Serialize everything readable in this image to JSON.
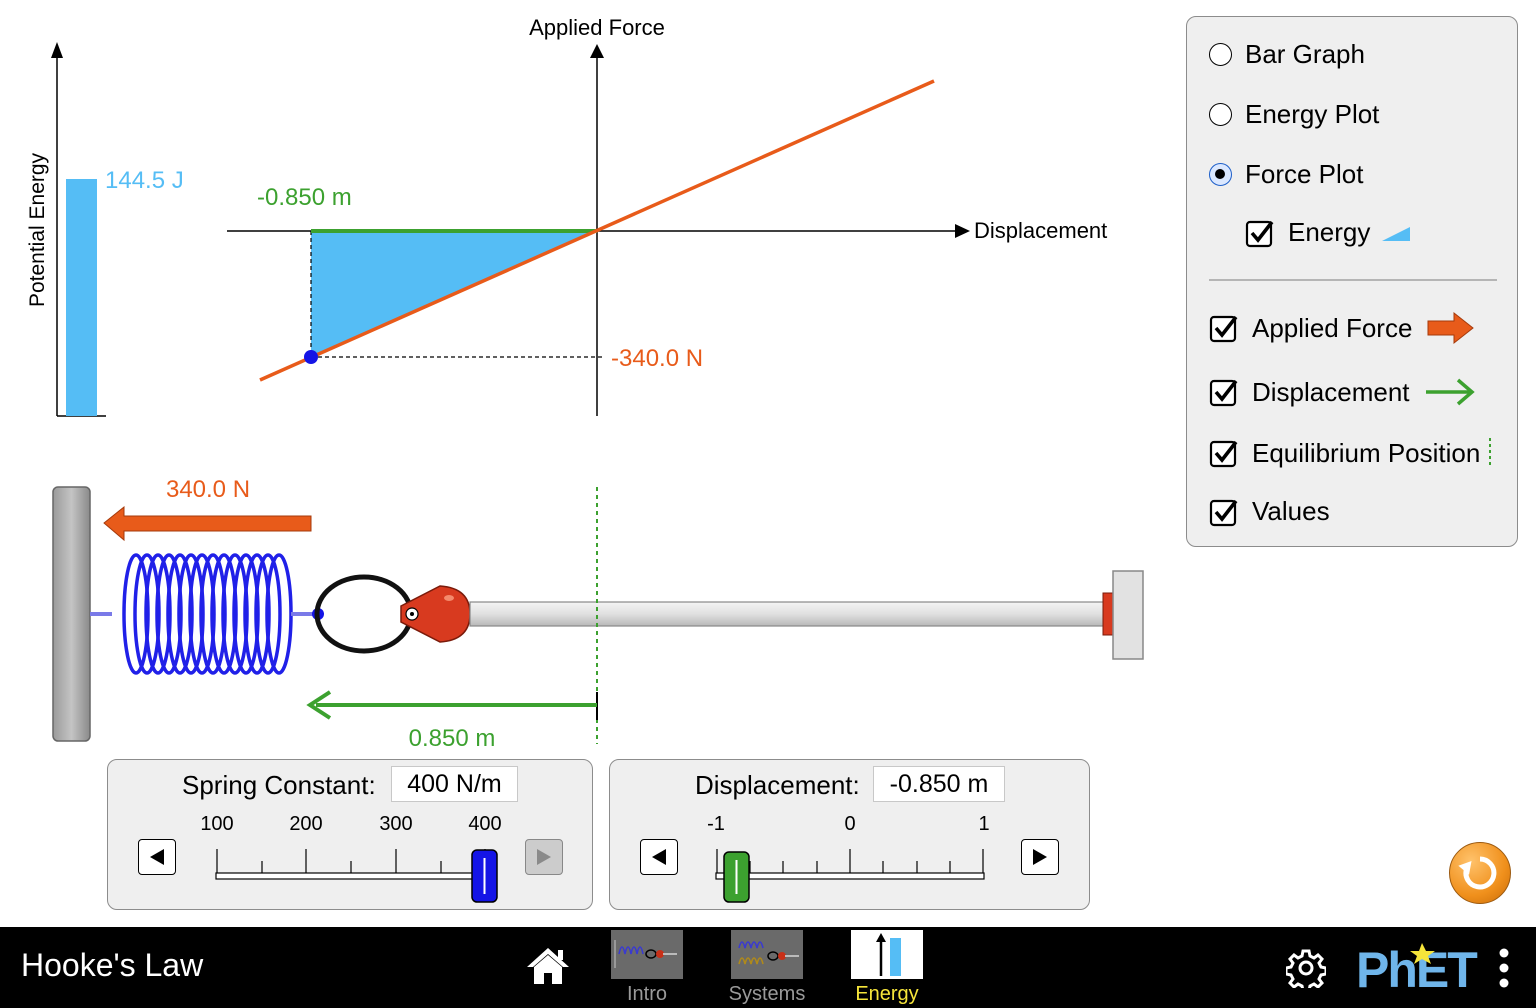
{
  "sim": {
    "title": "Hooke's Law"
  },
  "energy_bar": {
    "axis_label": "Potential Energy",
    "value_label": "144.5 J"
  },
  "force_plot": {
    "y_axis_label": "Applied Force",
    "x_axis_label": "Displacement",
    "displacement_label": "-0.850 m",
    "force_label": "-340.0 N"
  },
  "scene": {
    "applied_force_label": "340.0 N",
    "displacement_label": "0.850 m"
  },
  "controls": {
    "view_options": [
      {
        "label": "Bar Graph",
        "selected": false
      },
      {
        "label": "Energy Plot",
        "selected": false
      },
      {
        "label": "Force Plot",
        "selected": true
      }
    ],
    "energy_checkbox": {
      "label": "Energy",
      "checked": true
    },
    "checkboxes": [
      {
        "label": "Applied Force",
        "checked": true
      },
      {
        "label": "Displacement",
        "checked": true
      },
      {
        "label": "Equilibrium Position",
        "checked": true
      },
      {
        "label": "Values",
        "checked": true
      }
    ]
  },
  "spring_constant": {
    "label": "Spring Constant:",
    "value": "400 N/m",
    "ticks": [
      "100",
      "200",
      "300",
      "400"
    ]
  },
  "displacement": {
    "label": "Displacement:",
    "value": "-0.850 m",
    "ticks": [
      "-1",
      "0",
      "1"
    ]
  },
  "navbar": {
    "screens": [
      {
        "label": "Intro",
        "active": false
      },
      {
        "label": "Systems",
        "active": false
      },
      {
        "label": "Energy",
        "active": true
      }
    ],
    "logo": "PhET"
  },
  "colors": {
    "applied_force": "#e85b1a",
    "displacement": "#3ca12f",
    "energy": "#55bdf5",
    "spring": "#2020e8",
    "active_tab": "#f6e53a"
  }
}
